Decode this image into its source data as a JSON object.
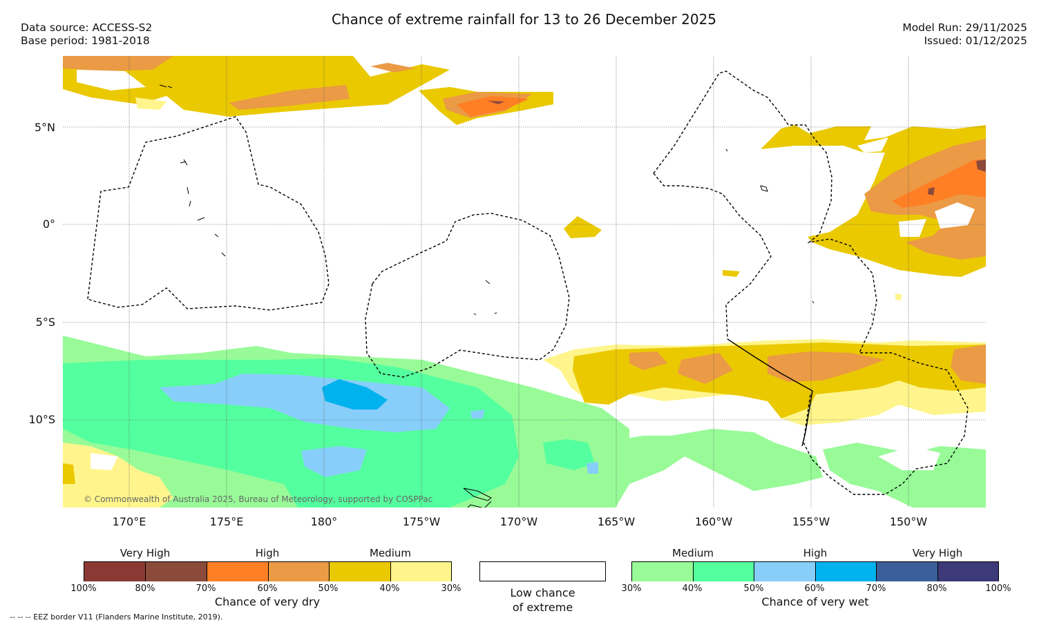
{
  "title": "Chance of extreme rainfall for 13 to 26 December 2025",
  "meta": {
    "data_source": "Data source: ACCESS-S2",
    "base_period": "Base period: 1981-2018",
    "model_run": "Model Run: 29/11/2025",
    "issued": "Issued: 01/12/2025"
  },
  "map": {
    "lat_labels": [
      "5°N",
      "0°",
      "5°S",
      "10°S"
    ],
    "lon_labels": [
      "170°E",
      "175°E",
      "180°",
      "175°W",
      "170°W",
      "165°W",
      "160°W",
      "155°W",
      "150°W"
    ],
    "copyright": "© Commonwealth of Australia 2025, Bureau of Meteorology, supported by COSPPac"
  },
  "legend": {
    "dry": {
      "levels": [
        "Very High",
        "High",
        "Medium"
      ],
      "ticks": [
        "100%",
        "80%",
        "70%",
        "60%",
        "50%",
        "40%",
        "30%"
      ],
      "caption": "Chance of very dry",
      "colors": [
        "#8b3a33",
        "#8b4a3a",
        "#ff7f24",
        "#eb9a45",
        "#eac900",
        "#fff58c"
      ]
    },
    "low": {
      "caption_line1": "Low chance",
      "caption_line2": "of extreme",
      "color": "#ffffff"
    },
    "wet": {
      "levels": [
        "Medium",
        "High",
        "Very High"
      ],
      "ticks": [
        "30%",
        "40%",
        "50%",
        "60%",
        "70%",
        "80%",
        "100%"
      ],
      "caption": "Chance of very wet",
      "colors": [
        "#98fb98",
        "#54ff9f",
        "#87cefa",
        "#00b2ee",
        "#3a5f9a",
        "#3c3a78"
      ]
    }
  },
  "footer": "-- -- -- EEZ border V11 (Flanders Marine Institute, 2019)."
}
